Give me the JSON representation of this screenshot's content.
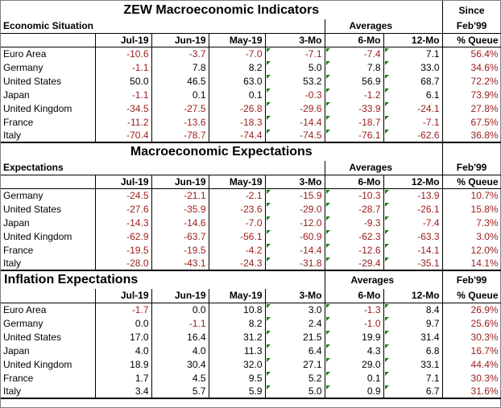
{
  "colors": {
    "negative": "#9b1c1c",
    "positive": "#000000",
    "indicator": "#1a7a1a"
  },
  "sections": [
    {
      "title": "ZEW Macroeconomic Indicators",
      "since_label": "Since",
      "subtitle": "Economic Situation",
      "averages_label": "Averages",
      "since_value": "Feb'99",
      "columns": [
        "Jul-19",
        "Jun-19",
        "May-19",
        "3-Mo",
        "6-Mo",
        "12-Mo",
        "% Queue"
      ],
      "rows": [
        {
          "name": "Euro Area",
          "values": [
            "-10.6",
            "-3.7",
            "-7.0",
            "-7.1",
            "-7.4",
            "7.1",
            "56.4%"
          ]
        },
        {
          "name": "Germany",
          "values": [
            "-1.1",
            "7.8",
            "8.2",
            "5.0",
            "7.8",
            "33.0",
            "34.6%"
          ]
        },
        {
          "name": "United States",
          "values": [
            "50.0",
            "46.5",
            "63.0",
            "53.2",
            "56.9",
            "68.7",
            "72.2%"
          ]
        },
        {
          "name": "Japan",
          "values": [
            "-1.1",
            "0.1",
            "0.1",
            "-0.3",
            "-1.2",
            "6.1",
            "73.9%"
          ]
        },
        {
          "name": "United Kingdom",
          "values": [
            "-34.5",
            "-27.5",
            "-26.8",
            "-29.6",
            "-33.9",
            "-24.1",
            "27.8%"
          ]
        },
        {
          "name": "France",
          "values": [
            "-11.2",
            "-13.6",
            "-18.3",
            "-14.4",
            "-18.7",
            "-7.1",
            "67.5%"
          ]
        },
        {
          "name": "Italy",
          "values": [
            "-70.4",
            "-78.7",
            "-74.4",
            "-74.5",
            "-76.1",
            "-62.6",
            "36.8%"
          ]
        }
      ]
    },
    {
      "title": "Macroeconomic Expectations",
      "since_label": "",
      "subtitle": "Expectations",
      "averages_label": "Averages",
      "since_value": "Feb'99",
      "columns": [
        "Jul-19",
        "Jun-19",
        "May-19",
        "3-Mo",
        "6-Mo",
        "12-Mo",
        "% Queue"
      ],
      "rows": [
        {
          "name": "Germany",
          "values": [
            "-24.5",
            "-21.1",
            "-2.1",
            "-15.9",
            "-10.3",
            "-13.9",
            "10.7%"
          ]
        },
        {
          "name": "United States",
          "values": [
            "-27.6",
            "-35.9",
            "-23.6",
            "-29.0",
            "-28.7",
            "-26.1",
            "15.8%"
          ]
        },
        {
          "name": "Japan",
          "values": [
            "-14.3",
            "-14.6",
            "-7.0",
            "-12.0",
            "-9.3",
            "-7.4",
            "7.3%"
          ]
        },
        {
          "name": "United Kingdom",
          "values": [
            "-62.9",
            "-63.7",
            "-56.1",
            "-60.9",
            "-62.3",
            "-63.3",
            "3.0%"
          ]
        },
        {
          "name": "France",
          "values": [
            "-19.5",
            "-19.5",
            "-4.2",
            "-14.4",
            "-12.6",
            "-14.1",
            "12.0%"
          ]
        },
        {
          "name": "Italy",
          "values": [
            "-28.0",
            "-43.1",
            "-24.3",
            "-31.8",
            "-29.4",
            "-35.1",
            "14.1%"
          ]
        }
      ]
    },
    {
      "title": "Inflation Expectations",
      "since_label": "",
      "subtitle": "",
      "averages_label": "Averages",
      "since_value": "Feb'99",
      "columns": [
        "Jul-19",
        "Jun-19",
        "May-19",
        "3-Mo",
        "6-Mo",
        "12-Mo",
        "% Queue"
      ],
      "rows": [
        {
          "name": "Euro Area",
          "values": [
            "-1.7",
            "0.0",
            "10.8",
            "3.0",
            "-1.3",
            "8.4",
            "26.9%"
          ]
        },
        {
          "name": "Germany",
          "values": [
            "0.0",
            "-1.1",
            "8.2",
            "2.4",
            "-1.0",
            "9.7",
            "25.6%"
          ]
        },
        {
          "name": "United States",
          "values": [
            "17.0",
            "16.4",
            "31.2",
            "21.5",
            "19.9",
            "31.4",
            "30.3%"
          ]
        },
        {
          "name": "Japan",
          "values": [
            "4.0",
            "4.0",
            "11.3",
            "6.4",
            "4.3",
            "6.8",
            "16.7%"
          ]
        },
        {
          "name": "United Kingdom",
          "values": [
            "18.9",
            "30.4",
            "32.0",
            "27.1",
            "29.0",
            "33.1",
            "44.4%"
          ]
        },
        {
          "name": "France",
          "values": [
            "1.7",
            "4.5",
            "9.5",
            "5.2",
            "0.1",
            "7.1",
            "30.3%"
          ]
        },
        {
          "name": "Italy",
          "values": [
            "3.4",
            "5.7",
            "5.9",
            "5.0",
            "0.9",
            "6.7",
            "31.6%"
          ]
        }
      ]
    }
  ]
}
